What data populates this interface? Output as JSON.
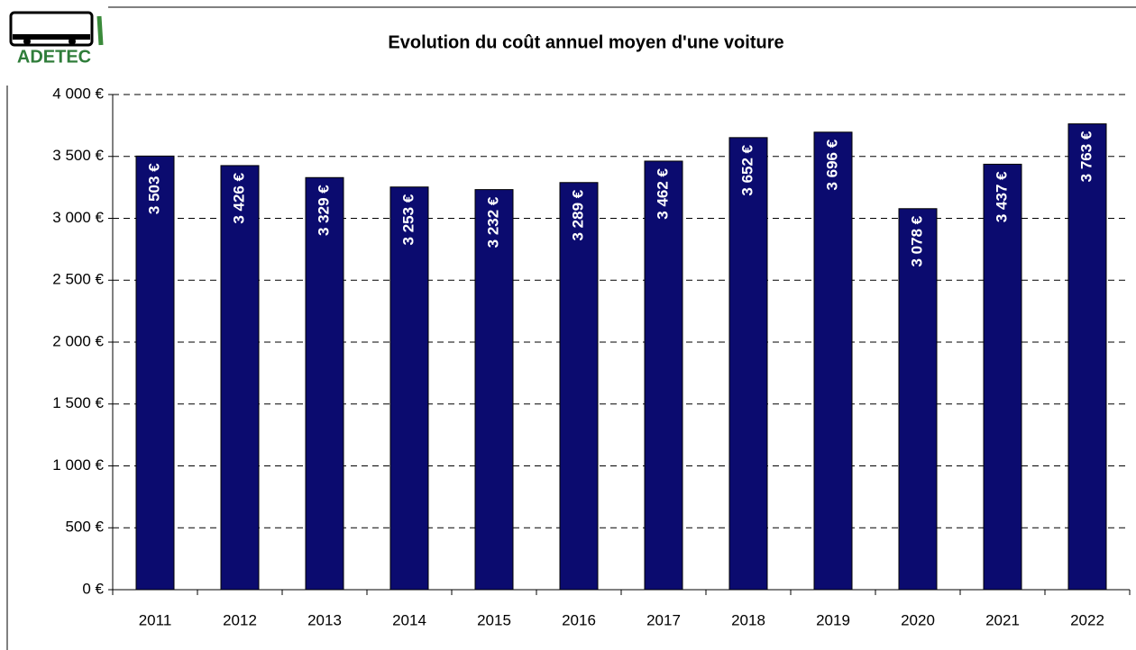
{
  "logo": "ADETEC",
  "chart_data": {
    "type": "bar",
    "title": "Evolution du coût annuel moyen d'une voiture",
    "categories": [
      "2011",
      "2012",
      "2013",
      "2014",
      "2015",
      "2016",
      "2017",
      "2018",
      "2019",
      "2020",
      "2021",
      "2022"
    ],
    "values": [
      3503,
      3426,
      3329,
      3253,
      3232,
      3289,
      3462,
      3652,
      3696,
      3078,
      3437,
      3763
    ],
    "value_labels": [
      "3 503 €",
      "3 426 €",
      "3 329 €",
      "3 253 €",
      "3 232 €",
      "3 289 €",
      "3 462 €",
      "3 652 €",
      "3 696 €",
      "3 078 €",
      "3 437 €",
      "3 763 €"
    ],
    "color": "#0b0b6f",
    "ylim": [
      0,
      4000
    ],
    "yticks": [
      {
        "value": 0,
        "label": "0 €"
      },
      {
        "value": 500,
        "label": "500 €"
      },
      {
        "value": 1000,
        "label": "1 000 €"
      },
      {
        "value": 1500,
        "label": "1 500 €"
      },
      {
        "value": 2000,
        "label": "2 000 €"
      },
      {
        "value": 2500,
        "label": "2 500 €"
      },
      {
        "value": 3000,
        "label": "3 000 €"
      },
      {
        "value": 3500,
        "label": "3 500 €"
      },
      {
        "value": 4000,
        "label": "4 000 €"
      }
    ],
    "grid": true
  }
}
